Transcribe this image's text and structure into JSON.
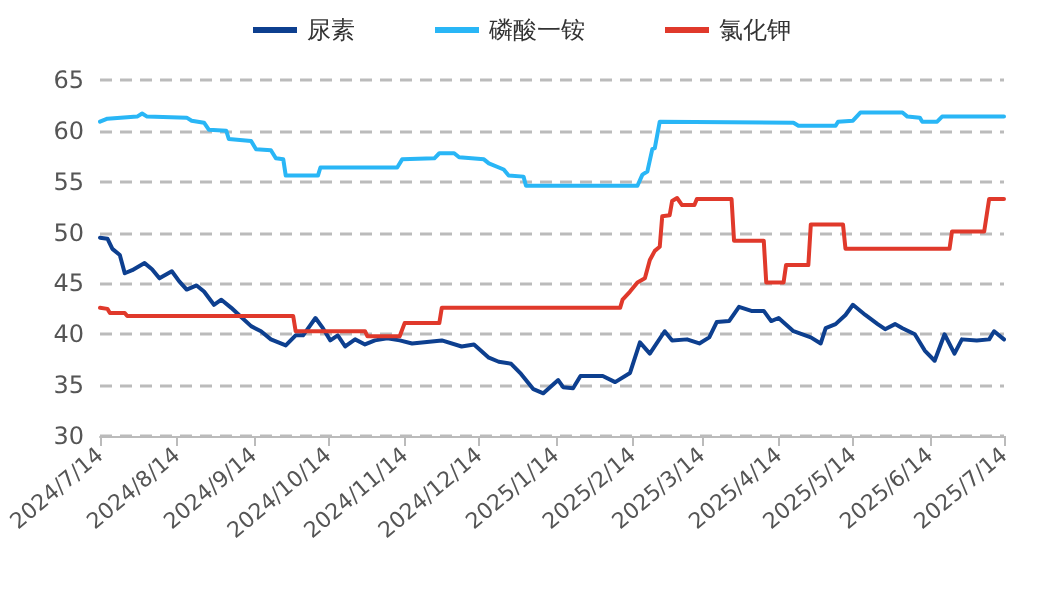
{
  "chart_data": {
    "type": "line",
    "legend": "top",
    "grid": "y",
    "marker": "none",
    "line_style": "solid",
    "xlim": [
      "2024-07-14",
      "2025-07-14"
    ],
    "xticks": [
      {
        "value": "2024-07-14",
        "label": "2024/7/14"
      },
      {
        "value": "2024-08-14",
        "label": "2024/8/14"
      },
      {
        "value": "2024-09-14",
        "label": "2024/9/14"
      },
      {
        "value": "2024-10-14",
        "label": "2024/10/14"
      },
      {
        "value": "2024-11-14",
        "label": "2024/11/14"
      },
      {
        "value": "2024-12-14",
        "label": "2024/12/14"
      },
      {
        "value": "2025-01-14",
        "label": "2025/1/14"
      },
      {
        "value": "2025-02-14",
        "label": "2025/2/14"
      },
      {
        "value": "2025-03-14",
        "label": "2025/3/14"
      },
      {
        "value": "2025-04-14",
        "label": "2025/4/14"
      },
      {
        "value": "2025-05-14",
        "label": "2025/5/14"
      },
      {
        "value": "2025-06-14",
        "label": "2025/6/14"
      },
      {
        "value": "2025-07-14",
        "label": "2025/7/14"
      }
    ],
    "ylim": [
      30,
      65
    ],
    "yticks": [
      30,
      35,
      40,
      45,
      50,
      55,
      60,
      65
    ],
    "series": [
      {
        "name": "尿素",
        "color": "#0d3f8f",
        "x": [
          "2024-07-14",
          "2024-07-17",
          "2024-07-19",
          "2024-07-22",
          "2024-07-24",
          "2024-07-27",
          "2024-08-01",
          "2024-08-04",
          "2024-08-07",
          "2024-08-12",
          "2024-08-15",
          "2024-08-18",
          "2024-08-22",
          "2024-08-25",
          "2024-08-29",
          "2024-09-01",
          "2024-09-05",
          "2024-09-09",
          "2024-09-13",
          "2024-09-17",
          "2024-09-21",
          "2024-09-27",
          "2024-10-01",
          "2024-10-04",
          "2024-10-09",
          "2024-10-12",
          "2024-10-15",
          "2024-10-18",
          "2024-10-21",
          "2024-10-25",
          "2024-10-29",
          "2024-11-02",
          "2024-11-07",
          "2024-11-12",
          "2024-11-17",
          "2024-11-29",
          "2024-12-07",
          "2024-12-12",
          "2024-12-18",
          "2024-12-22",
          "2024-12-27",
          "2024-12-31",
          "2025-01-05",
          "2025-01-09",
          "2025-01-15",
          "2025-01-17",
          "2025-01-21",
          "2025-01-24",
          "2025-02-02",
          "2025-02-07",
          "2025-02-13",
          "2025-02-17",
          "2025-02-21",
          "2025-02-27",
          "2025-03-02",
          "2025-03-08",
          "2025-03-13",
          "2025-03-17",
          "2025-03-20",
          "2025-03-25",
          "2025-03-29",
          "2025-04-03",
          "2025-04-08",
          "2025-04-11",
          "2025-04-14",
          "2025-04-20",
          "2025-04-27",
          "2025-05-01",
          "2025-05-03",
          "2025-05-07",
          "2025-05-11",
          "2025-05-14",
          "2025-05-19",
          "2025-05-24",
          "2025-05-27",
          "2025-05-31",
          "2025-06-03",
          "2025-06-08",
          "2025-06-12",
          "2025-06-16",
          "2025-06-20",
          "2025-06-24",
          "2025-06-27",
          "2025-07-03",
          "2025-07-08",
          "2025-07-10",
          "2025-07-14"
        ],
        "values": [
          49.5,
          49.4,
          48.4,
          47.8,
          46.0,
          46.3,
          47.0,
          46.4,
          45.5,
          46.2,
          45.2,
          44.4,
          44.8,
          44.2,
          42.9,
          43.4,
          42.6,
          41.7,
          40.8,
          40.3,
          39.5,
          38.9,
          39.9,
          39.9,
          41.6,
          40.6,
          39.4,
          39.9,
          38.8,
          39.5,
          39.0,
          39.4,
          39.6,
          39.4,
          39.1,
          39.4,
          38.8,
          39.0,
          37.7,
          37.3,
          37.1,
          36.1,
          34.6,
          34.2,
          35.5,
          34.8,
          34.7,
          35.9,
          35.9,
          35.3,
          36.2,
          39.2,
          38.1,
          40.3,
          39.4,
          39.5,
          39.1,
          39.7,
          41.2,
          41.3,
          42.7,
          42.3,
          42.3,
          41.3,
          41.6,
          40.3,
          39.7,
          39.1,
          40.6,
          41.0,
          41.9,
          42.9,
          41.9,
          41.0,
          40.5,
          41.0,
          40.6,
          40.0,
          38.4,
          37.4,
          40.0,
          38.1,
          39.5,
          39.4,
          39.5,
          40.3,
          39.5
        ]
      },
      {
        "name": "磷酸一铵",
        "color": "#29b6f6",
        "x": [
          "2024-07-14",
          "2024-07-17",
          "2024-07-29",
          "2024-07-31",
          "2024-08-02",
          "2024-08-18",
          "2024-08-20",
          "2024-08-25",
          "2024-08-27",
          "2024-09-03",
          "2024-09-04",
          "2024-09-13",
          "2024-09-15",
          "2024-09-21",
          "2024-09-23",
          "2024-09-26",
          "2024-09-27",
          "2024-10-10",
          "2024-10-11",
          "2024-11-11",
          "2024-11-13",
          "2024-11-26",
          "2024-11-28",
          "2024-12-04",
          "2024-12-06",
          "2024-12-16",
          "2024-12-18",
          "2024-12-24",
          "2024-12-26",
          "2025-01-01",
          "2025-01-02",
          "2025-02-16",
          "2025-02-18",
          "2025-02-20",
          "2025-02-22",
          "2025-02-23",
          "2025-02-25",
          "2025-04-20",
          "2025-04-22",
          "2025-05-07",
          "2025-05-08",
          "2025-05-14",
          "2025-05-17",
          "2025-06-03",
          "2025-06-05",
          "2025-06-10",
          "2025-06-11",
          "2025-06-17",
          "2025-06-19",
          "2025-07-14"
        ],
        "values": [
          60.9,
          61.2,
          61.4,
          61.7,
          61.4,
          61.3,
          61.0,
          60.8,
          60.1,
          60.0,
          59.2,
          59.0,
          58.2,
          58.1,
          57.3,
          57.2,
          55.6,
          55.6,
          56.4,
          56.4,
          57.2,
          57.3,
          57.8,
          57.8,
          57.4,
          57.2,
          56.8,
          56.2,
          55.6,
          55.5,
          54.6,
          54.6,
          55.7,
          56.0,
          58.2,
          58.3,
          60.9,
          60.8,
          60.5,
          60.5,
          60.9,
          61.0,
          61.8,
          61.8,
          61.4,
          61.3,
          60.9,
          60.9,
          61.4,
          61.4
        ]
      },
      {
        "name": "氯化钾",
        "color": "#e0392b",
        "x": [
          "2024-07-14",
          "2024-07-17",
          "2024-07-18",
          "2024-07-24",
          "2024-07-25",
          "2024-09-30",
          "2024-10-01",
          "2024-10-29",
          "2024-10-30",
          "2024-11-12",
          "2024-11-14",
          "2024-11-28",
          "2024-11-29",
          "2025-02-09",
          "2025-02-10",
          "2025-02-13",
          "2025-02-16",
          "2025-02-19",
          "2025-02-21",
          "2025-02-23",
          "2025-02-25",
          "2025-02-26",
          "2025-03-01",
          "2025-03-02",
          "2025-03-04",
          "2025-03-06",
          "2025-03-11",
          "2025-03-12",
          "2025-03-26",
          "2025-03-27",
          "2025-04-08",
          "2025-04-09",
          "2025-04-16",
          "2025-04-17",
          "2025-04-26",
          "2025-04-27",
          "2025-05-10",
          "2025-05-11",
          "2025-06-22",
          "2025-06-23",
          "2025-07-06",
          "2025-07-08",
          "2025-07-14"
        ],
        "values": [
          42.6,
          42.5,
          42.1,
          42.1,
          41.8,
          41.8,
          40.3,
          40.3,
          39.8,
          39.8,
          41.1,
          41.1,
          42.6,
          42.6,
          43.4,
          44.2,
          45.1,
          45.5,
          47.3,
          48.2,
          48.6,
          51.6,
          51.7,
          53.1,
          53.4,
          52.7,
          52.7,
          53.3,
          53.3,
          49.2,
          49.2,
          45.1,
          45.1,
          46.8,
          46.8,
          50.8,
          50.8,
          48.4,
          48.4,
          50.1,
          50.1,
          53.3,
          53.3
        ]
      }
    ]
  }
}
